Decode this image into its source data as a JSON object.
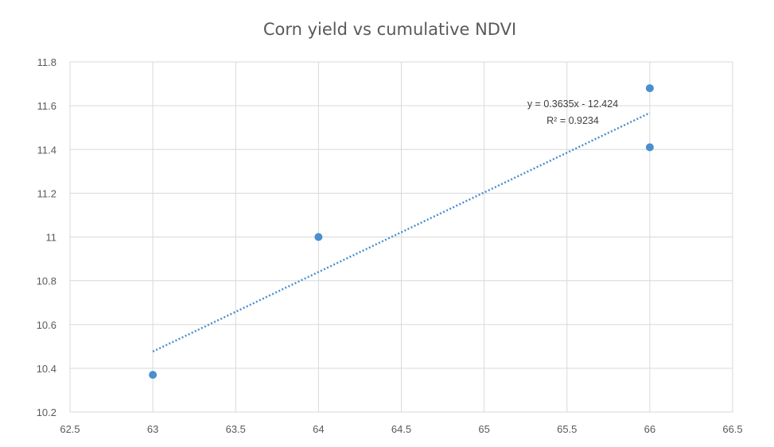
{
  "chart_data": {
    "type": "scatter",
    "title": "Corn yield vs cumulative NDVI",
    "xlabel": "",
    "ylabel": "",
    "xlim": [
      62.5,
      66.5
    ],
    "ylim": [
      10.2,
      11.8
    ],
    "xticks": [
      "62.5",
      "63",
      "63.5",
      "64",
      "64.5",
      "65",
      "65.5",
      "66",
      "66.5"
    ],
    "yticks": [
      "10.2",
      "10.4",
      "10.6",
      "10.8",
      "11",
      "11.2",
      "11.4",
      "11.6",
      "11.8"
    ],
    "grid": true,
    "legend": "none",
    "series": [
      {
        "x": [
          63,
          64,
          66,
          66
        ],
        "y": [
          10.37,
          11.0,
          11.68,
          11.41
        ],
        "color": "#4a8fd0"
      }
    ],
    "trendline": {
      "type": "linear",
      "slope": 0.3635,
      "intercept": -12.424,
      "x_range": [
        63,
        66
      ],
      "style": "dotted",
      "color": "#4a8fd0",
      "equation": "y = 0.3635x - 12.424",
      "r_squared": "R² = 0.9234"
    }
  }
}
